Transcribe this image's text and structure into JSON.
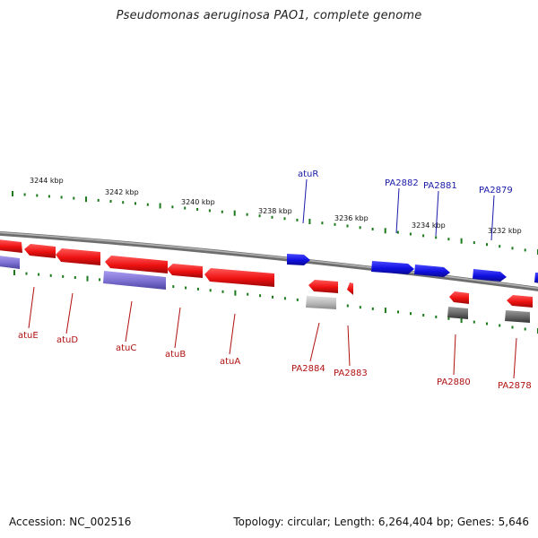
{
  "title": "Pseudomonas aeruginosa PAO1, complete genome",
  "footer": {
    "accession": "Accession: NC_002516",
    "summary": "Topology: circular; Length: 6,264,404 bp; Genes: 5,646"
  },
  "colors": {
    "forward_gene": "#1010e0",
    "forward_label": "#1a1aa8",
    "reverse_gene": "#ee1111",
    "reverse_label": "#b01010",
    "ticks": "#1c7a1c",
    "backbone": "#8a8a8a",
    "feature_violet": "#7b6fd0",
    "feature_gray": "#666666",
    "feature_lightgray": "#b8b8b8"
  },
  "scale": {
    "tick_labels": [
      "3244 kbp",
      "3242 kbp",
      "3240 kbp",
      "3238 kbp",
      "3236 kbp",
      "3234 kbp",
      "3232 kbp"
    ]
  },
  "genes": {
    "forward": [
      {
        "label": "atuR"
      },
      {
        "label": "PA2882"
      },
      {
        "label": "PA2881"
      },
      {
        "label": "PA2879"
      }
    ],
    "reverse": [
      {
        "label": "atuE"
      },
      {
        "label": "atuD"
      },
      {
        "label": "atuC"
      },
      {
        "label": "atuB"
      },
      {
        "label": "atuA"
      },
      {
        "label": "PA2884"
      },
      {
        "label": "PA2883"
      },
      {
        "label": "PA2880"
      },
      {
        "label": "PA2878"
      }
    ]
  }
}
